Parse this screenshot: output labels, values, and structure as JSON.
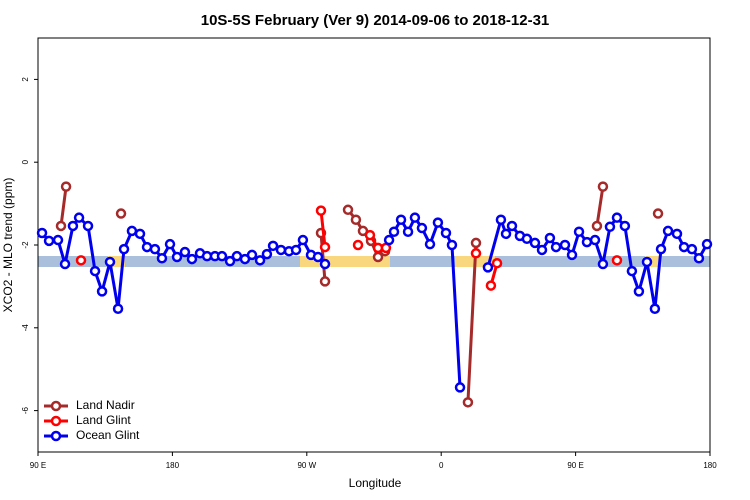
{
  "chart_data": {
    "type": "line",
    "title": "10S-5S February (Ver 9)   2014-09-06 to 2018-12-31",
    "xlabel": "Longitude",
    "ylabel": "XCO2 - MLO trend (ppm)",
    "xlim": [
      90,
      540
    ],
    "ylim": [
      -7,
      3
    ],
    "xticks": [
      {
        "value": 90,
        "label": "90 E"
      },
      180,
      {
        "value": 270,
        "label": "90 W"
      },
      {
        "value": 360,
        "label": "0"
      },
      {
        "value": 450,
        "label": "90 E"
      },
      {
        "value": 540,
        "label": "180"
      }
    ],
    "yticks": [
      -6,
      -4,
      -2,
      0,
      2
    ],
    "legend": "bottom-left",
    "series": [
      {
        "name": "Land Nadir",
        "color": "#a52a2a",
        "x": [
          105.4,
          108.8,
          null,
          145.6,
          null,
          279.5,
          282.2,
          null,
          297.6,
          302.9,
          307.6,
          313,
          317.7,
          322.4,
          null,
          377.9,
          383.3,
          null,
          464.3,
          468.3,
          null,
          505.2
        ],
        "values": [
          -1.54,
          -0.59,
          null,
          -1.24,
          null,
          -1.71,
          -2.88,
          null,
          -1.15,
          -1.39,
          -1.66,
          -1.9,
          -2.29,
          -2.15,
          null,
          -5.8,
          -1.95,
          null,
          -1.54,
          -0.59,
          null,
          -1.24
        ]
      },
      {
        "name": "Land Glint",
        "color": "#ff0000",
        "x": [
          118.8,
          null,
          279.5,
          282.2,
          null,
          304.3,
          null,
          312.3,
          317.7,
          323,
          null,
          383.3,
          null,
          393.3,
          397.4,
          null,
          477.7
        ],
        "values": [
          -2.37,
          null,
          -1.17,
          -2.05,
          null,
          -2.0,
          null,
          -1.76,
          -2.07,
          -2.07,
          null,
          -2.2,
          null,
          -2.98,
          -2.44,
          null,
          -2.37
        ]
      },
      {
        "name": "Ocean Glint",
        "color": "#0000ee",
        "x": [
          92.7,
          97.4,
          103.4,
          108.1,
          113.4,
          117.5,
          123.5,
          128.2,
          132.9,
          138.2,
          143.6,
          147.6,
          152.9,
          158.3,
          163,
          168.3,
          173,
          178.4,
          183.1,
          188.4,
          193.1,
          198.5,
          203.2,
          208.5,
          213.2,
          218.6,
          223.2,
          228.6,
          233.3,
          238.7,
          243.3,
          247.4,
          252.7,
          258.1,
          262.8,
          267.4,
          272.8,
          277.5,
          282.2,
          null,
          325.1,
          328.4,
          333.1,
          337.8,
          342.4,
          347.1,
          352.5,
          357.8,
          363.2,
          367.2,
          372.6,
          null,
          391.3,
          400,
          403.4,
          407.4,
          412.7,
          417.4,
          422.8,
          427.5,
          432.8,
          436.9,
          442.9,
          447.6,
          452.3,
          457.6,
          463,
          468.3,
          473,
          477.7,
          483,
          487.7,
          492.4,
          497.8,
          503.1,
          507.2,
          511.9,
          517.9,
          522.6,
          527.9,
          532.6,
          538
        ],
        "values": [
          -1.71,
          -1.9,
          -1.88,
          -2.46,
          -1.54,
          -1.34,
          -1.54,
          -2.63,
          -3.12,
          -2.41,
          -3.54,
          -2.1,
          -1.66,
          -1.73,
          -2.05,
          -2.1,
          -2.32,
          -1.98,
          -2.29,
          -2.17,
          -2.34,
          -2.2,
          -2.27,
          -2.27,
          -2.27,
          -2.39,
          -2.27,
          -2.34,
          -2.24,
          -2.37,
          -2.22,
          -2.02,
          -2.12,
          -2.15,
          -2.12,
          -1.88,
          -2.24,
          -2.29,
          -2.46,
          null,
          -1.88,
          -1.68,
          -1.39,
          -1.68,
          -1.34,
          -1.59,
          -1.98,
          -1.46,
          -1.71,
          -2.0,
          -5.44,
          null,
          -2.54,
          -1.39,
          -1.73,
          -1.54,
          -1.78,
          -1.85,
          -1.95,
          -2.12,
          -1.83,
          -2.05,
          -2.0,
          -2.24,
          -1.68,
          -1.93,
          -1.88,
          -2.46,
          -1.56,
          -1.34,
          -1.54,
          -2.63,
          -3.12,
          -2.41,
          -3.54,
          -2.1,
          -1.66,
          -1.73,
          -2.05,
          -2.1,
          -2.32,
          -1.98
        ]
      }
    ]
  }
}
